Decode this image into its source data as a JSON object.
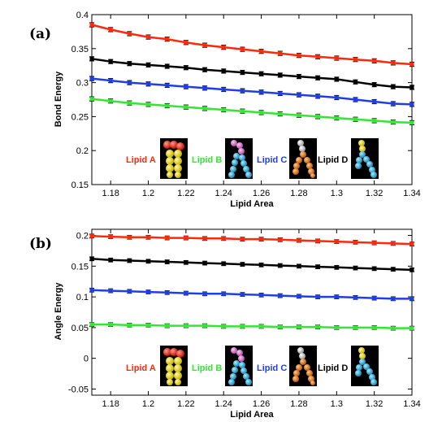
{
  "chart_data": [
    {
      "panel_label": "(a)",
      "type": "line",
      "xlabel": "Lipid Area",
      "ylabel": "Bond Energy",
      "xlim": [
        1.17,
        1.34
      ],
      "ylim": [
        0.15,
        0.4
      ],
      "x_ticks": [
        "1.18",
        "1.2",
        "1.22",
        "1.24",
        "1.26",
        "1.28",
        "1.3",
        "1.32",
        "1.34"
      ],
      "y_ticks": [
        "0.15",
        "0.2",
        "0.25",
        "0.3",
        "0.35",
        "0.4"
      ],
      "error_bars": true,
      "x": [
        1.17,
        1.18,
        1.19,
        1.2,
        1.21,
        1.22,
        1.23,
        1.24,
        1.25,
        1.26,
        1.27,
        1.28,
        1.29,
        1.3,
        1.31,
        1.32,
        1.33,
        1.34
      ],
      "series": [
        {
          "name": "Lipid A",
          "color": "#ff2a0c",
          "values": [
            0.385,
            0.378,
            0.372,
            0.367,
            0.364,
            0.359,
            0.355,
            0.352,
            0.349,
            0.346,
            0.343,
            0.34,
            0.338,
            0.336,
            0.334,
            0.332,
            0.329,
            0.327
          ]
        },
        {
          "name": "Lipid D",
          "color": "#000000",
          "values": [
            0.335,
            0.331,
            0.328,
            0.326,
            0.324,
            0.322,
            0.319,
            0.317,
            0.315,
            0.313,
            0.311,
            0.309,
            0.307,
            0.305,
            0.301,
            0.297,
            0.294,
            0.293
          ]
        },
        {
          "name": "Lipid C",
          "color": "#1f3fe6",
          "values": [
            0.306,
            0.303,
            0.3,
            0.298,
            0.296,
            0.294,
            0.292,
            0.29,
            0.288,
            0.286,
            0.284,
            0.282,
            0.28,
            0.278,
            0.275,
            0.272,
            0.269,
            0.268
          ]
        },
        {
          "name": "Lipid B",
          "color": "#33e633",
          "values": [
            0.276,
            0.273,
            0.27,
            0.268,
            0.266,
            0.264,
            0.262,
            0.26,
            0.258,
            0.256,
            0.254,
            0.252,
            0.25,
            0.248,
            0.246,
            0.244,
            0.242,
            0.241
          ]
        }
      ],
      "legend": {
        "placement": "bottom",
        "entries": [
          {
            "label": "Lipid A",
            "color": "#ff2a0c"
          },
          {
            "label": "Lipid B",
            "color": "#33e633"
          },
          {
            "label": "Lipid C",
            "color": "#1f3fe6"
          },
          {
            "label": "Lipid D",
            "color": "#000000"
          }
        ]
      }
    },
    {
      "panel_label": "(b)",
      "type": "line",
      "xlabel": "Lipid Area",
      "ylabel": "Angle Energy",
      "xlim": [
        1.17,
        1.34
      ],
      "ylim": [
        -0.06,
        0.21
      ],
      "x_ticks": [
        "1.18",
        "1.2",
        "1.22",
        "1.24",
        "1.26",
        "1.28",
        "1.3",
        "1.32",
        "1.34"
      ],
      "y_ticks": [
        "-0.05",
        "0",
        "0.05",
        "0.1",
        "0.15",
        "0.2"
      ],
      "error_bars": true,
      "x": [
        1.17,
        1.18,
        1.19,
        1.2,
        1.21,
        1.22,
        1.23,
        1.24,
        1.25,
        1.26,
        1.27,
        1.28,
        1.29,
        1.3,
        1.31,
        1.32,
        1.33,
        1.34
      ],
      "series": [
        {
          "name": "Lipid A",
          "color": "#ff2a0c",
          "values": [
            0.199,
            0.198,
            0.197,
            0.197,
            0.196,
            0.196,
            0.195,
            0.195,
            0.194,
            0.194,
            0.193,
            0.192,
            0.191,
            0.19,
            0.189,
            0.188,
            0.187,
            0.186
          ]
        },
        {
          "name": "Lipid D",
          "color": "#000000",
          "values": [
            0.162,
            0.16,
            0.159,
            0.158,
            0.157,
            0.156,
            0.155,
            0.154,
            0.153,
            0.152,
            0.151,
            0.15,
            0.149,
            0.148,
            0.147,
            0.146,
            0.145,
            0.144
          ]
        },
        {
          "name": "Lipid C",
          "color": "#1f3fe6",
          "values": [
            0.111,
            0.11,
            0.109,
            0.108,
            0.107,
            0.106,
            0.105,
            0.105,
            0.104,
            0.103,
            0.102,
            0.101,
            0.1,
            0.1,
            0.099,
            0.098,
            0.097,
            0.097
          ]
        },
        {
          "name": "Lipid B",
          "color": "#33e633",
          "values": [
            0.055,
            0.055,
            0.054,
            0.054,
            0.053,
            0.053,
            0.053,
            0.052,
            0.052,
            0.052,
            0.051,
            0.051,
            0.051,
            0.05,
            0.05,
            0.05,
            0.049,
            0.049
          ]
        }
      ],
      "legend": {
        "placement": "bottom",
        "entries": [
          {
            "label": "Lipid A",
            "color": "#ff2a0c"
          },
          {
            "label": "Lipid B",
            "color": "#33e633"
          },
          {
            "label": "Lipid C",
            "color": "#1f3fe6"
          },
          {
            "label": "Lipid D",
            "color": "#000000"
          }
        ]
      }
    }
  ]
}
